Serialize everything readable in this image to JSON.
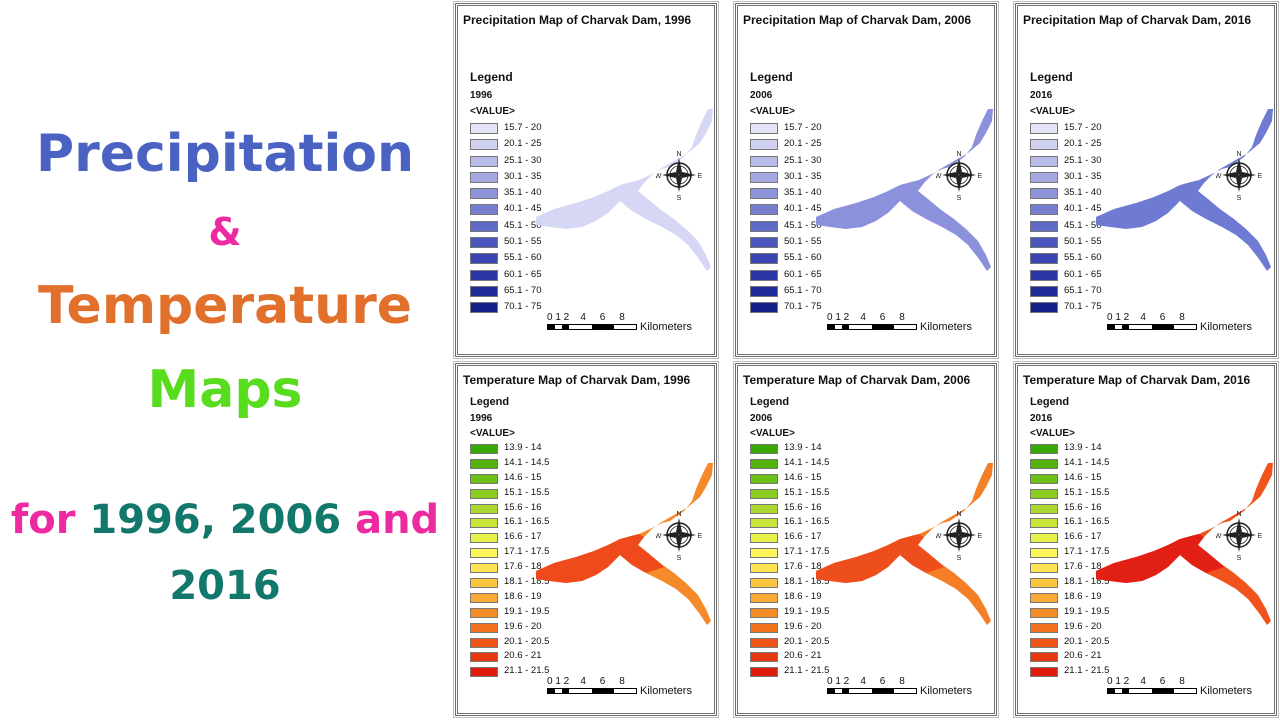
{
  "headline": {
    "line1": "Precipitation",
    "line2": "&",
    "line3": "Temperature",
    "line4": "Maps",
    "line5_for": "for",
    "line5_years": "1996, 2006",
    "line5_and": "and",
    "line6": "2016"
  },
  "legend_common": {
    "legend_word": "Legend",
    "value_word": "<VALUE>",
    "scale_numbers": "0 1 2    4     6     8",
    "scale_unit": "Kilometers",
    "compass": {
      "n": "N",
      "s": "S",
      "e": "E",
      "w": "W"
    }
  },
  "precip_classes": [
    {
      "label": "15.7 - 20",
      "color": "#e4e4f7"
    },
    {
      "label": "20.1 - 25",
      "color": "#d0d1f1"
    },
    {
      "label": "25.1 - 30",
      "color": "#b9bce9"
    },
    {
      "label": "30.1 - 35",
      "color": "#a3a8e1"
    },
    {
      "label": "35.1 - 40",
      "color": "#8c93d8"
    },
    {
      "label": "40.1 - 45",
      "color": "#767fcf"
    },
    {
      "label": "45.1 - 50",
      "color": "#5f6ac6"
    },
    {
      "label": "50.1 - 55",
      "color": "#4b56bd"
    },
    {
      "label": "55.1 - 60",
      "color": "#3a45b3"
    },
    {
      "label": "60.1 - 65",
      "color": "#2a35a6"
    },
    {
      "label": "65.1 - 70",
      "color": "#1d2a98"
    },
    {
      "label": "70.1 - 75",
      "color": "#122088"
    }
  ],
  "temp_classes": [
    {
      "label": "13.9 - 14",
      "color": "#38a800"
    },
    {
      "label": "14.1 - 14.5",
      "color": "#52b40b"
    },
    {
      "label": "14.6 - 15",
      "color": "#6cc016"
    },
    {
      "label": "15.1 - 15.5",
      "color": "#8ccd22"
    },
    {
      "label": "15.6 - 16",
      "color": "#abd92f"
    },
    {
      "label": "16.1 - 16.5",
      "color": "#cbe53c"
    },
    {
      "label": "16.6 - 17",
      "color": "#e8f04a"
    },
    {
      "label": "17.1 - 17.5",
      "color": "#fbf45a"
    },
    {
      "label": "17.6 - 18",
      "color": "#fde14f"
    },
    {
      "label": "18.1 - 18.5",
      "color": "#fbc441"
    },
    {
      "label": "18.6 - 19",
      "color": "#f8a833"
    },
    {
      "label": "19.1 - 19.5",
      "color": "#f58d28"
    },
    {
      "label": "19.6 - 20",
      "color": "#f1721e"
    },
    {
      "label": "20.1 - 20.5",
      "color": "#ec5516"
    },
    {
      "label": "20.6 - 21",
      "color": "#e6380f"
    },
    {
      "label": "21.1 - 21.5",
      "color": "#e01b0b"
    }
  ],
  "maps": [
    {
      "id": "precip-1996",
      "kind": "precip",
      "title": "Precipitation Map of Charvak Dam, 1996",
      "year_label": "1996",
      "fill_color": "#d6d7f5",
      "fill_color_2": "#d6d7f5"
    },
    {
      "id": "precip-2006",
      "kind": "precip",
      "title": "Precipitation Map of Charvak Dam, 2006",
      "year_label": "2006",
      "fill_color": "#8b92db",
      "fill_color_2": "#8b92db"
    },
    {
      "id": "precip-2016",
      "kind": "precip",
      "title": "Precipitation Map of Charvak Dam, 2016",
      "year_label": "2016",
      "fill_color": "#6f7ad3",
      "fill_color_2": "#6f7ad3"
    },
    {
      "id": "temp-1996",
      "kind": "temp",
      "title": "Temperature Map of Charvak Dam, 1996",
      "year_label": "1996",
      "fill_color": "#ef4a1b",
      "fill_color_2": "#f58a2a"
    },
    {
      "id": "temp-2006",
      "kind": "temp",
      "title": "Temperature Map of Charvak Dam, 2006",
      "year_label": "2006",
      "fill_color": "#ee4e1c",
      "fill_color_2": "#f57f26"
    },
    {
      "id": "temp-2016",
      "kind": "temp",
      "title": "Temperature Map of Charvak Dam, 2016",
      "year_label": "2016",
      "fill_color": "#e21f14",
      "fill_color_2": "#f0531c"
    }
  ]
}
